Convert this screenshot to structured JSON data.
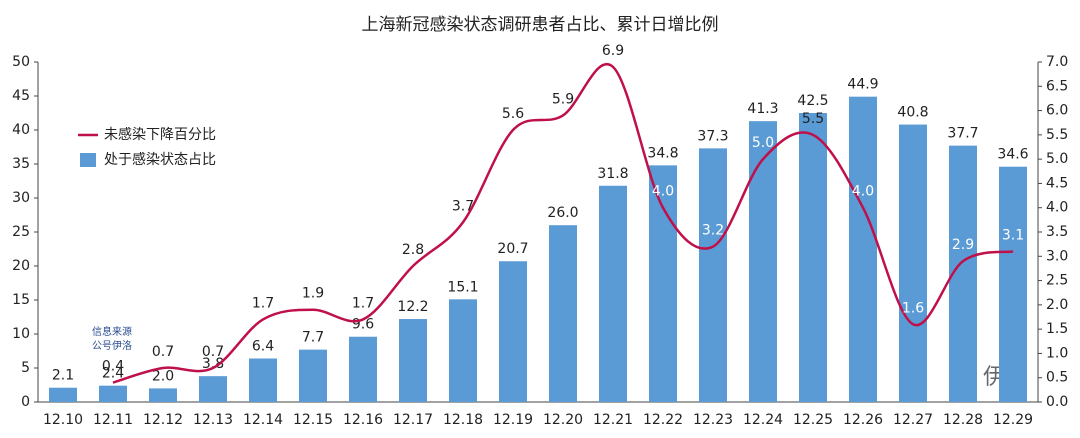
{
  "chart_data": {
    "type": "bar",
    "title": "上海新冠感染状态调研患者占比、累计日增比例",
    "categories": [
      "12.10",
      "12.11",
      "12.12",
      "12.13",
      "12.14",
      "12.15",
      "12.16",
      "12.17",
      "12.18",
      "12.19",
      "12.20",
      "12.21",
      "12.22",
      "12.23",
      "12.24",
      "12.25",
      "12.26",
      "12.27",
      "12.28",
      "12.29"
    ],
    "series": [
      {
        "name": "处于感染状态占比",
        "color": "#5b9bd5",
        "type": "bar",
        "values": [
          2.1,
          2.4,
          2.0,
          3.8,
          6.4,
          7.7,
          9.6,
          12.2,
          15.1,
          20.7,
          26.0,
          31.8,
          34.8,
          37.3,
          41.3,
          42.5,
          44.9,
          40.8,
          37.7,
          34.6
        ],
        "value_labels": [
          "2.1",
          "2.4",
          "2.0",
          "3.8",
          "6.4",
          "7.7",
          "9.6",
          "12.2",
          "15.1",
          "20.7",
          "26.0",
          "31.8",
          "34.8",
          "37.3",
          "41.3",
          "42.5",
          "44.9",
          "40.8",
          "37.7",
          "34.6"
        ]
      },
      {
        "name": "未感染下降百分比",
        "color": "#c0104a",
        "type": "line",
        "axis": "y2",
        "values": [
          null,
          0.4,
          0.7,
          0.7,
          1.7,
          1.9,
          1.7,
          2.8,
          3.7,
          5.6,
          5.9,
          6.9,
          4.0,
          3.2,
          5.0,
          5.5,
          4.0,
          1.6,
          2.9,
          3.1
        ],
        "value_labels": [
          null,
          "0.4",
          "0.7",
          "0.7",
          "1.7",
          "1.9",
          "1.7",
          "2.8",
          "3.7",
          "5.6",
          "5.9",
          "6.9",
          "4.0",
          "3.2",
          "5.0",
          "5.5",
          "4.0",
          "1.6",
          "2.9",
          "3.1"
        ]
      }
    ],
    "ylim": [
      0,
      50
    ],
    "yticks": [
      0,
      5,
      10,
      15,
      20,
      25,
      30,
      35,
      40,
      45,
      50
    ],
    "y2lim": [
      0,
      7
    ],
    "y2ticks": [
      {
        "value": 0,
        "label": "0.0"
      },
      {
        "value": 0.5,
        "label": "0.5"
      },
      {
        "value": 1,
        "label": "1.0"
      },
      {
        "value": 1.5,
        "label": "1.5"
      },
      {
        "value": 2,
        "label": "2.0"
      },
      {
        "value": 2.5,
        "label": "2.5"
      },
      {
        "value": 3,
        "label": "3.0"
      },
      {
        "value": 3.5,
        "label": "3.5"
      },
      {
        "value": 4,
        "label": "4.0"
      },
      {
        "value": 4.5,
        "label": "4.5"
      },
      {
        "value": 5,
        "label": "5.0"
      },
      {
        "value": 5.5,
        "label": "5.5"
      },
      {
        "value": 6,
        "label": "6.0"
      },
      {
        "value": 6.5,
        "label": "6.5"
      },
      {
        "value": 7,
        "label": "7.0"
      }
    ],
    "legend": "upper left",
    "annotations": [
      "信息来源",
      "公号伊洛",
      "伊洛"
    ]
  }
}
